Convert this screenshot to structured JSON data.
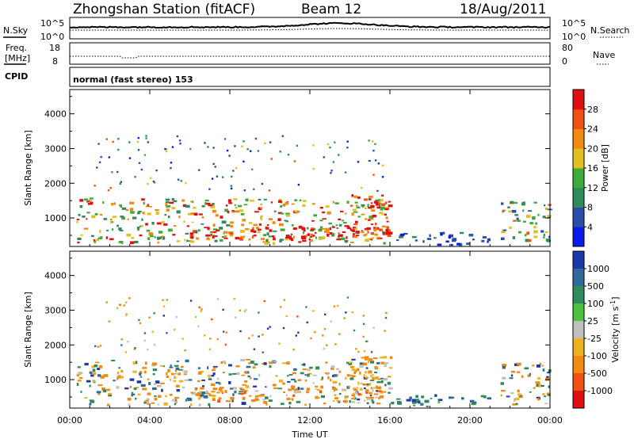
{
  "header": {
    "station": "Zhongshan Station (fitACF)",
    "beam": "Beam 12",
    "date": "18/Aug/2011"
  },
  "params": {
    "nsky_label": "N.Sky",
    "nsky_ticks": [
      "10^5",
      "10^0"
    ],
    "nsearch_label": "N.Search",
    "nsearch_ticks": [
      "10^5",
      "10^0"
    ],
    "freq_label": "Freq.",
    "freq_unit": "[MHz]",
    "freq_ticks": [
      "18",
      "8"
    ],
    "nave_label": "Nave",
    "nave_ticks": [
      "80",
      "0"
    ],
    "cpid_label": "CPID",
    "cpid_text": "normal (fast stereo) 153"
  },
  "chart_data": [
    {
      "type": "heatmap",
      "name": "power-panel",
      "ylabel": "Slant Range [km]",
      "xlabel": "Time UT",
      "x_ticks": [
        "00:00",
        "04:00",
        "08:00",
        "12:00",
        "16:00",
        "20:00",
        "00:00"
      ],
      "y_ticks": [
        1000,
        2000,
        3000,
        4000
      ],
      "ylim": [
        180,
        4700
      ],
      "xlim": [
        0,
        24
      ],
      "colorbar": {
        "label": "Power [dB]",
        "ticks": [
          "4",
          "8",
          "12",
          "16",
          "20",
          "24",
          "28"
        ],
        "colors": [
          "#0a1be8",
          "#2a4ea8",
          "#2f8a5c",
          "#3faa3a",
          "#e0c020",
          "#f08a10",
          "#f05010",
          "#e01010"
        ]
      },
      "features": [
        {
          "t_start": 0.3,
          "t_end": 15.9,
          "r_min": 300,
          "r_max": 1600,
          "level": "medium-high"
        },
        {
          "t_start": 6.0,
          "t_end": 15.5,
          "r_min": 400,
          "r_max": 800,
          "level": "high"
        },
        {
          "t_start": 14.0,
          "t_end": 16.0,
          "r_min": 500,
          "r_max": 1700,
          "level": "high"
        },
        {
          "t_start": 14.8,
          "t_end": 15.4,
          "r_min": 2500,
          "r_max": 2700,
          "level": "low"
        },
        {
          "t_start": 16.0,
          "t_end": 21.0,
          "r_min": 250,
          "r_max": 600,
          "level": "low"
        },
        {
          "t_start": 21.5,
          "t_end": 24.0,
          "r_min": 300,
          "r_max": 1500,
          "level": "medium"
        }
      ]
    },
    {
      "type": "heatmap",
      "name": "velocity-panel",
      "ylabel": "Slant Range [km]",
      "xlabel": "Time UT",
      "x_ticks": [
        "00:00",
        "04:00",
        "08:00",
        "12:00",
        "16:00",
        "20:00",
        "00:00"
      ],
      "y_ticks": [
        1000,
        2000,
        3000,
        4000
      ],
      "ylim": [
        180,
        4700
      ],
      "xlim": [
        0,
        24
      ],
      "colorbar": {
        "label": "Velocity [m s^-1]",
        "ticks": [
          "1000",
          "500",
          "100",
          "25",
          "-25",
          "-100",
          "-500",
          "-1000"
        ],
        "colors": [
          "#1a3aa8",
          "#2f6a9a",
          "#2f8a5c",
          "#4cc040",
          "#c0c0c0",
          "#f0b020",
          "#f08a10",
          "#f05010",
          "#e01010"
        ]
      },
      "features": [
        {
          "t_start": 0.3,
          "t_end": 15.9,
          "r_min": 300,
          "r_max": 1600,
          "level": "mixed"
        },
        {
          "t_start": 6.0,
          "t_end": 15.5,
          "r_min": 400,
          "r_max": 800,
          "level": "negative"
        },
        {
          "t_start": 14.0,
          "t_end": 16.0,
          "r_min": 500,
          "r_max": 1700,
          "level": "negative"
        },
        {
          "t_start": 16.0,
          "t_end": 21.0,
          "r_min": 250,
          "r_max": 600,
          "level": "positive"
        },
        {
          "t_start": 21.5,
          "t_end": 24.0,
          "r_min": 300,
          "r_max": 1500,
          "level": "mixed"
        }
      ]
    }
  ]
}
